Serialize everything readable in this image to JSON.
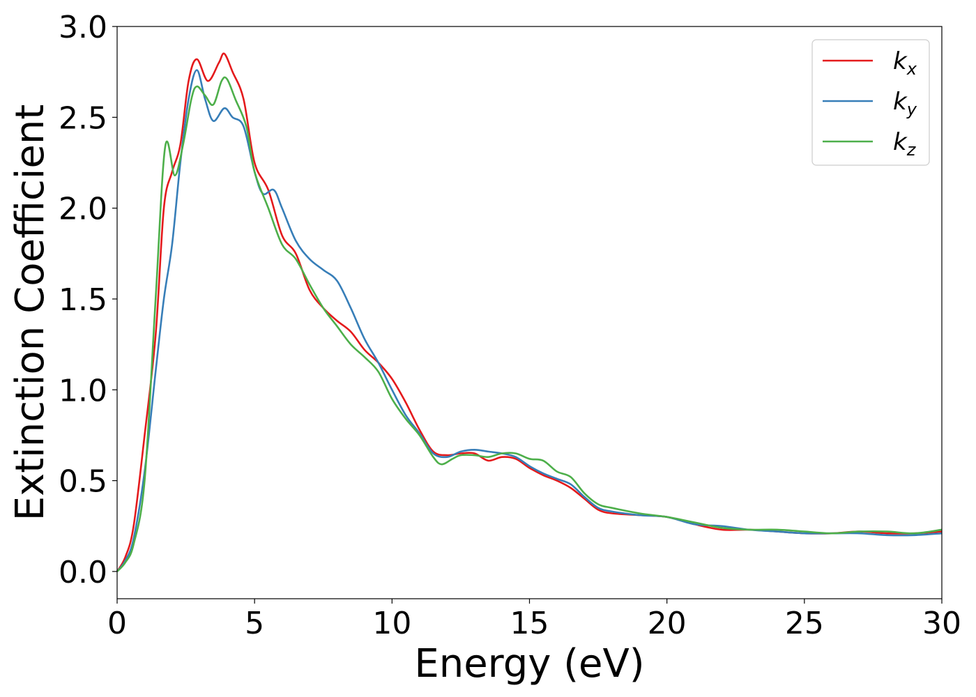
{
  "chart_data": {
    "type": "line",
    "xlabel": "Energy (eV)",
    "ylabel": "Extinction Coefficient",
    "xlim": [
      0,
      30
    ],
    "ylim": [
      -0.15,
      3.0
    ],
    "xticks": [
      "0",
      "5",
      "10",
      "15",
      "20",
      "25",
      "30"
    ],
    "yticks": [
      "0.0",
      "0.5",
      "1.0",
      "1.5",
      "2.0",
      "2.5",
      "3.0"
    ],
    "grid": false,
    "legend_position": "top-right",
    "series": [
      {
        "name": "kx",
        "label_base": "k",
        "label_sub": "x",
        "color": "#e41a1c",
        "x": [
          0,
          0.3,
          0.6,
          1.0,
          1.4,
          1.7,
          2.0,
          2.3,
          2.6,
          2.9,
          3.3,
          3.7,
          3.9,
          4.2,
          4.6,
          5.0,
          5.5,
          6.0,
          6.5,
          7.0,
          7.5,
          8.0,
          8.5,
          9.0,
          9.5,
          10.0,
          10.5,
          11.0,
          11.5,
          12.0,
          12.5,
          13.0,
          13.5,
          14.0,
          14.5,
          15.0,
          15.5,
          16.0,
          16.5,
          17.0,
          17.5,
          18.0,
          19.0,
          20.0,
          21.0,
          22.0,
          23.0,
          24.0,
          25.0,
          26.0,
          27.0,
          28.0,
          29.0,
          30.0
        ],
        "y": [
          0,
          0.08,
          0.25,
          0.75,
          1.3,
          2.0,
          2.2,
          2.35,
          2.7,
          2.82,
          2.7,
          2.8,
          2.85,
          2.75,
          2.6,
          2.25,
          2.1,
          1.85,
          1.75,
          1.55,
          1.45,
          1.38,
          1.32,
          1.22,
          1.15,
          1.06,
          0.93,
          0.78,
          0.66,
          0.64,
          0.65,
          0.65,
          0.61,
          0.63,
          0.62,
          0.57,
          0.53,
          0.5,
          0.46,
          0.4,
          0.34,
          0.32,
          0.31,
          0.3,
          0.26,
          0.23,
          0.23,
          0.22,
          0.21,
          0.21,
          0.22,
          0.21,
          0.21,
          0.22
        ]
      },
      {
        "name": "ky",
        "label_base": "k",
        "label_sub": "y",
        "color": "#377eb8",
        "x": [
          0,
          0.3,
          0.6,
          1.0,
          1.4,
          1.7,
          2.0,
          2.3,
          2.6,
          2.9,
          3.2,
          3.5,
          3.9,
          4.2,
          4.6,
          5.0,
          5.3,
          5.7,
          6.0,
          6.5,
          7.0,
          7.5,
          8.0,
          8.5,
          9.0,
          9.5,
          10.0,
          10.5,
          11.0,
          11.5,
          12.0,
          12.5,
          13.0,
          13.5,
          14.0,
          14.5,
          15.0,
          15.5,
          16.0,
          16.5,
          17.0,
          17.5,
          18.0,
          19.0,
          20.0,
          21.0,
          22.0,
          23.0,
          24.0,
          25.0,
          26.0,
          27.0,
          28.0,
          29.0,
          30.0
        ],
        "y": [
          0,
          0.06,
          0.18,
          0.55,
          1.1,
          1.5,
          1.8,
          2.25,
          2.6,
          2.76,
          2.6,
          2.48,
          2.55,
          2.5,
          2.45,
          2.2,
          2.08,
          2.1,
          2.0,
          1.82,
          1.72,
          1.66,
          1.6,
          1.45,
          1.28,
          1.15,
          1.0,
          0.86,
          0.76,
          0.65,
          0.63,
          0.66,
          0.67,
          0.66,
          0.65,
          0.63,
          0.58,
          0.54,
          0.51,
          0.48,
          0.41,
          0.35,
          0.33,
          0.31,
          0.3,
          0.26,
          0.25,
          0.23,
          0.22,
          0.21,
          0.21,
          0.21,
          0.2,
          0.2,
          0.21
        ]
      },
      {
        "name": "kz",
        "label_base": "k",
        "label_sub": "z",
        "color": "#4daf4a",
        "x": [
          0,
          0.3,
          0.6,
          1.0,
          1.4,
          1.75,
          2.1,
          2.4,
          2.7,
          2.9,
          3.2,
          3.5,
          3.8,
          4.0,
          4.3,
          4.7,
          5.0,
          5.5,
          6.0,
          6.5,
          7.0,
          7.5,
          8.0,
          8.5,
          9.0,
          9.5,
          10.0,
          10.5,
          11.0,
          11.5,
          11.8,
          12.2,
          12.5,
          13.0,
          13.5,
          14.0,
          14.5,
          15.0,
          15.5,
          16.0,
          16.5,
          17.0,
          17.5,
          18.0,
          19.0,
          20.0,
          21.0,
          22.0,
          23.0,
          24.0,
          25.0,
          26.0,
          27.0,
          28.0,
          29.0,
          30.0
        ],
        "y": [
          0,
          0.05,
          0.15,
          0.5,
          1.5,
          2.34,
          2.18,
          2.35,
          2.6,
          2.67,
          2.62,
          2.57,
          2.7,
          2.71,
          2.6,
          2.45,
          2.2,
          2.0,
          1.8,
          1.72,
          1.58,
          1.45,
          1.35,
          1.25,
          1.18,
          1.1,
          0.95,
          0.84,
          0.75,
          0.63,
          0.59,
          0.62,
          0.64,
          0.64,
          0.63,
          0.65,
          0.65,
          0.62,
          0.61,
          0.55,
          0.52,
          0.43,
          0.37,
          0.35,
          0.32,
          0.3,
          0.27,
          0.24,
          0.23,
          0.23,
          0.22,
          0.21,
          0.22,
          0.22,
          0.21,
          0.23
        ]
      }
    ]
  }
}
